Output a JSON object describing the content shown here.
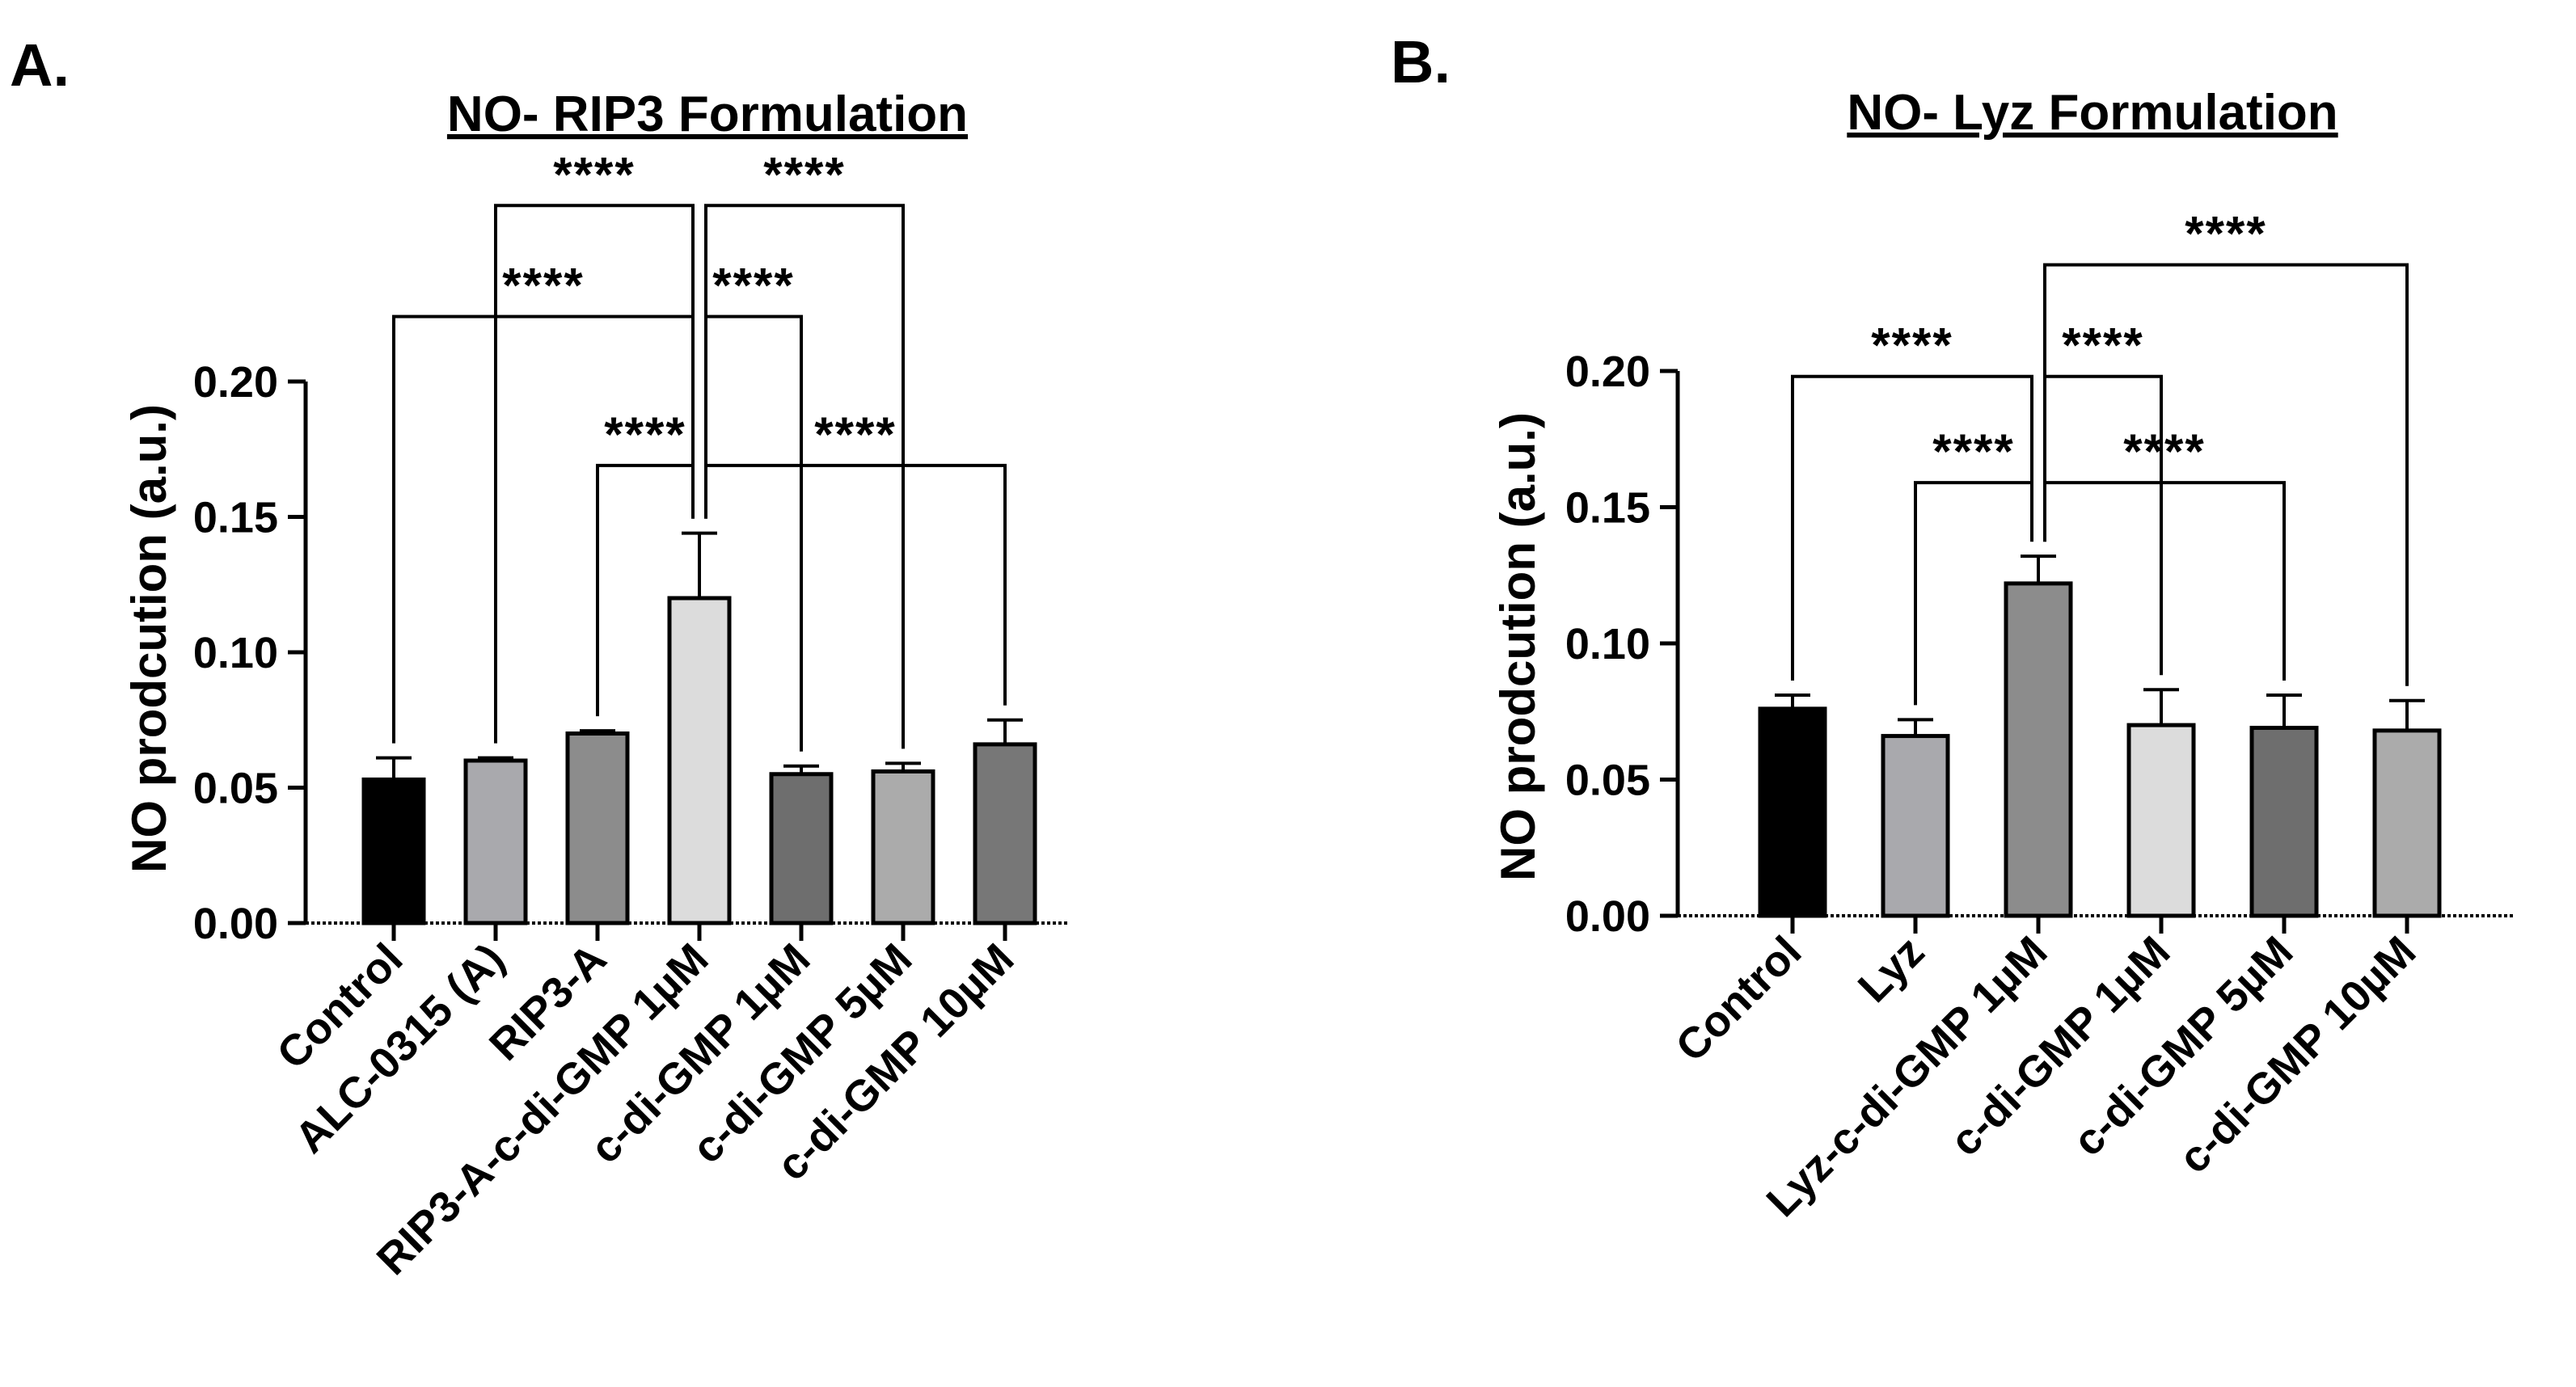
{
  "chart_data": [
    {
      "panel_label": "A.",
      "type": "bar",
      "title": "NO- RIP3 Formulation",
      "xlabel": "",
      "ylabel": "NO prodcution (a.u.)",
      "ylim": [
        0,
        0.2
      ],
      "yticks": [
        "0.00",
        "0.05",
        "0.10",
        "0.15",
        "0.20"
      ],
      "categories": [
        "Control",
        "ALC-0315 (A)",
        "RIP3-A",
        "RIP3-A-c-di-GMP 1µM",
        "c-di-GMP 1µM",
        "c-di-GMP 5µM",
        "c-di-GMP 10µM"
      ],
      "values": [
        0.053,
        0.06,
        0.07,
        0.12,
        0.055,
        0.056,
        0.066
      ],
      "errors": [
        0.008,
        0.001,
        0.001,
        0.024,
        0.003,
        0.003,
        0.009
      ],
      "colors": [
        "#000000",
        "#a9a9ad",
        "#8c8c8c",
        "#dcdcdc",
        "#6e6e6e",
        "#ababab",
        "#777777"
      ],
      "comparisons": [
        {
          "from": 3,
          "to": 1,
          "label": "****",
          "level": 0.265
        },
        {
          "from": 3,
          "to": 5,
          "label": "****",
          "level": 0.265
        },
        {
          "from": 3,
          "to": 0,
          "label": "****",
          "level": 0.224
        },
        {
          "from": 3,
          "to": 4,
          "label": "****",
          "level": 0.224
        },
        {
          "from": 3,
          "to": 2,
          "label": "****",
          "level": 0.169
        },
        {
          "from": 3,
          "to": 6,
          "label": "****",
          "level": 0.169
        }
      ]
    },
    {
      "panel_label": "B.",
      "type": "bar",
      "title": "NO- Lyz Formulation",
      "xlabel": "",
      "ylabel": "NO prodcution (a.u.)",
      "ylim": [
        0,
        0.2
      ],
      "yticks": [
        "0.00",
        "0.05",
        "0.10",
        "0.15",
        "0.20"
      ],
      "categories": [
        "Control",
        "Lyz",
        "Lyz-c-di-GMP 1µM",
        "c-di-GMP 1µM",
        "c-di-GMP 5µM",
        "c-di-GMP 10µM"
      ],
      "values": [
        0.076,
        0.066,
        0.122,
        0.07,
        0.069,
        0.068
      ],
      "errors": [
        0.005,
        0.006,
        0.01,
        0.013,
        0.012,
        0.011
      ],
      "colors": [
        "#000000",
        "#a9a9ad",
        "#8c8c8c",
        "#dcdcdc",
        "#6e6e6e",
        "#ababab"
      ],
      "comparisons": [
        {
          "from": 2,
          "to": 5,
          "label": "****",
          "level": 0.239
        },
        {
          "from": 2,
          "to": 0,
          "label": "****",
          "level": 0.198
        },
        {
          "from": 2,
          "to": 3,
          "label": "****",
          "level": 0.198
        },
        {
          "from": 2,
          "to": 1,
          "label": "****",
          "level": 0.159
        },
        {
          "from": 2,
          "to": 4,
          "label": "****",
          "level": 0.159
        }
      ]
    }
  ]
}
